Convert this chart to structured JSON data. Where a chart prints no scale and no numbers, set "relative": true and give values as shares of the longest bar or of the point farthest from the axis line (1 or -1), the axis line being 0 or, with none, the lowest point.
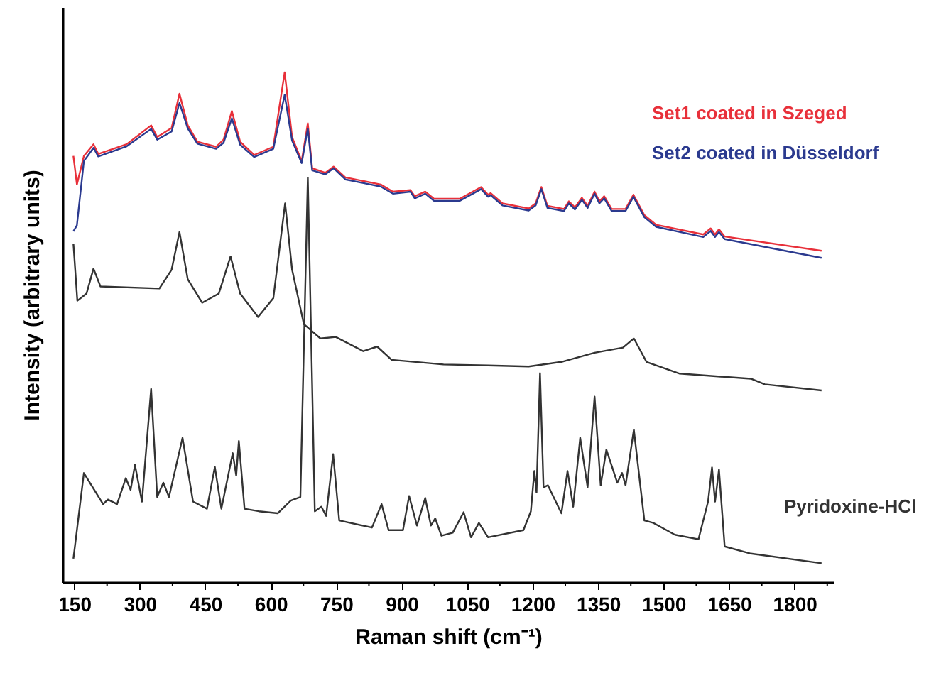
{
  "chart_data": {
    "type": "line",
    "relative": true,
    "xlabel": "Raman shift (cm⁻¹)",
    "ylabel": "Intensity (arbitrary units)",
    "xlim": [
      123,
      1890
    ],
    "xticks": [
      150,
      {
        "value": 225,
        "label": null
      },
      300,
      {
        "value": 375,
        "label": null
      },
      450,
      {
        "value": 525,
        "label": null
      },
      600,
      {
        "value": 675,
        "label": null
      },
      750,
      {
        "value": 825,
        "label": null
      },
      900,
      {
        "value": 975,
        "label": null
      },
      1050,
      {
        "value": 1125,
        "label": null
      },
      1200,
      {
        "value": 1275,
        "label": null
      },
      1350,
      {
        "value": 1425,
        "label": null
      },
      1500,
      {
        "value": 1575,
        "label": null
      },
      1650,
      {
        "value": 1725,
        "label": null
      },
      1800,
      {
        "value": 1875,
        "label": null
      }
    ],
    "grid": false,
    "line_style": "solid",
    "marker": "none",
    "series": [
      {
        "name": "Set1 coated in Szeged",
        "color": "#e8303a",
        "x": [
          148,
          156,
          172,
          194,
          205,
          270,
          326,
          340,
          373,
          391,
          410,
          432,
          475,
          492,
          511,
          530,
          562,
          606,
          632,
          649,
          671,
          685,
          695,
          725,
          744,
          771,
          852,
          880,
          920,
          930,
          954,
          974,
          1033,
          1082,
          1098,
          1104,
          1131,
          1191,
          1207,
          1220,
          1234,
          1272,
          1283,
          1297,
          1313,
          1326,
          1342,
          1353,
          1364,
          1381,
          1413,
          1431,
          1456,
          1483,
          1591,
          1608,
          1618,
          1627,
          1640,
          1862
        ],
        "values": [
          0.836,
          0.78,
          0.836,
          0.859,
          0.84,
          0.859,
          0.896,
          0.873,
          0.891,
          0.958,
          0.896,
          0.864,
          0.854,
          0.868,
          0.924,
          0.864,
          0.838,
          0.854,
          1.0,
          0.873,
          0.826,
          0.9,
          0.812,
          0.803,
          0.815,
          0.794,
          0.78,
          0.766,
          0.769,
          0.757,
          0.766,
          0.752,
          0.752,
          0.775,
          0.76,
          0.763,
          0.743,
          0.733,
          0.743,
          0.775,
          0.738,
          0.732,
          0.747,
          0.735,
          0.754,
          0.738,
          0.766,
          0.747,
          0.757,
          0.732,
          0.732,
          0.76,
          0.72,
          0.701,
          0.682,
          0.694,
          0.682,
          0.692,
          0.678,
          0.65
        ]
      },
      {
        "name": "Set2 coated in Düsseldorf",
        "color": "#2b3a8f",
        "x": [
          148,
          156,
          172,
          194,
          205,
          270,
          326,
          340,
          373,
          391,
          410,
          432,
          475,
          492,
          511,
          530,
          562,
          606,
          632,
          649,
          671,
          685,
          695,
          725,
          744,
          771,
          852,
          880,
          920,
          930,
          954,
          974,
          1033,
          1082,
          1098,
          1104,
          1131,
          1191,
          1207,
          1220,
          1234,
          1272,
          1283,
          1297,
          1313,
          1326,
          1342,
          1353,
          1364,
          1381,
          1413,
          1431,
          1456,
          1483,
          1591,
          1608,
          1618,
          1627,
          1640,
          1862
        ],
        "values": [
          0.688,
          0.7,
          0.826,
          0.852,
          0.835,
          0.855,
          0.889,
          0.868,
          0.884,
          0.94,
          0.89,
          0.86,
          0.85,
          0.862,
          0.91,
          0.858,
          0.834,
          0.85,
          0.956,
          0.866,
          0.822,
          0.89,
          0.808,
          0.8,
          0.812,
          0.79,
          0.776,
          0.762,
          0.766,
          0.753,
          0.762,
          0.748,
          0.748,
          0.771,
          0.756,
          0.759,
          0.739,
          0.729,
          0.739,
          0.771,
          0.734,
          0.728,
          0.743,
          0.731,
          0.75,
          0.734,
          0.762,
          0.743,
          0.753,
          0.728,
          0.728,
          0.756,
          0.716,
          0.697,
          0.677,
          0.689,
          0.677,
          0.687,
          0.673,
          0.636
        ]
      },
      {
        "color": "#333333",
        "x": [
          148,
          157,
          178,
          194,
          210,
          345,
          373,
          391,
          410,
          443,
          481,
          508,
          530,
          571,
          606,
          633,
          649,
          676,
          714,
          749,
          812,
          844,
          877,
          996,
          1098,
          1191,
          1266,
          1342,
          1407,
          1432,
          1461,
          1537,
          1700,
          1732,
          1862
        ],
        "values": [
          0.664,
          0.552,
          0.566,
          0.615,
          0.58,
          0.576,
          0.613,
          0.687,
          0.594,
          0.548,
          0.566,
          0.639,
          0.566,
          0.52,
          0.557,
          0.743,
          0.613,
          0.506,
          0.478,
          0.481,
          0.453,
          0.462,
          0.436,
          0.427,
          0.425,
          0.423,
          0.432,
          0.45,
          0.46,
          0.478,
          0.432,
          0.409,
          0.399,
          0.388,
          0.376
        ]
      },
      {
        "name": "Pyridoxine-HCl",
        "color": "#333333",
        "x": [
          148,
          172,
          216,
          227,
          248,
          268,
          279,
          289,
          305,
          326,
          340,
          354,
          367,
          398,
          422,
          454,
          472,
          487,
          513,
          521,
          527,
          540,
          573,
          616,
          646,
          668,
          685,
          701,
          716,
          727,
          743,
          757,
          832,
          854,
          870,
          903,
          917,
          935,
          954,
          967,
          977,
          991,
          1017,
          1042,
          1059,
          1077,
          1098,
          1179,
          1196,
          1204,
          1209,
          1217,
          1225,
          1235,
          1266,
          1280,
          1293,
          1309,
          1326,
          1342,
          1356,
          1369,
          1394,
          1405,
          1413,
          1432,
          1456,
          1477,
          1526,
          1580,
          1602,
          1611,
          1618,
          1627,
          1640,
          1700,
          1862
        ],
        "values": [
          0.046,
          0.214,
          0.153,
          0.162,
          0.153,
          0.204,
          0.181,
          0.23,
          0.158,
          0.379,
          0.167,
          0.195,
          0.167,
          0.283,
          0.158,
          0.144,
          0.226,
          0.144,
          0.253,
          0.209,
          0.277,
          0.144,
          0.139,
          0.135,
          0.16,
          0.167,
          0.794,
          0.139,
          0.148,
          0.13,
          0.251,
          0.121,
          0.107,
          0.153,
          0.102,
          0.102,
          0.169,
          0.111,
          0.165,
          0.111,
          0.125,
          0.091,
          0.097,
          0.137,
          0.088,
          0.116,
          0.088,
          0.102,
          0.139,
          0.218,
          0.176,
          0.41,
          0.186,
          0.19,
          0.135,
          0.218,
          0.148,
          0.283,
          0.186,
          0.364,
          0.19,
          0.26,
          0.195,
          0.214,
          0.19,
          0.299,
          0.121,
          0.116,
          0.093,
          0.084,
          0.158,
          0.225,
          0.158,
          0.221,
          0.07,
          0.056,
          0.037
        ]
      }
    ]
  }
}
